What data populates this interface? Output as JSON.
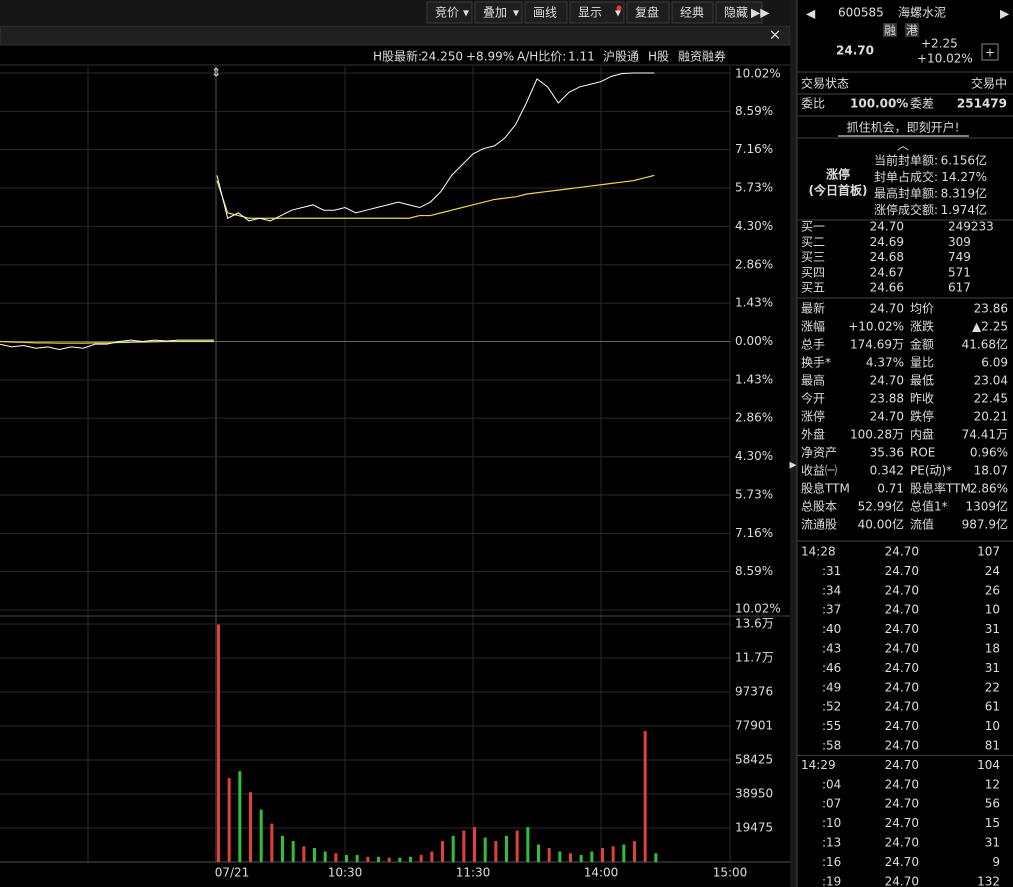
{
  "toolbar": {
    "buttons": [
      "竞价",
      "叠加",
      "画线",
      "显示",
      "复盘",
      "经典",
      "隐藏"
    ]
  },
  "info_bar": {
    "h_label": "H股最新:",
    "h_price": "24.250",
    "h_change": "+8.99%",
    "ah_label": "A/H比价:",
    "ah_value": "1.11",
    "links": [
      "沪股通",
      "H股",
      "融资融券"
    ]
  },
  "chart": {
    "type": "line",
    "price_axis": {
      "ylim": [
        -10.02,
        10.02
      ],
      "yticks": [
        {
          "value": 10.02,
          "label": "10.02%"
        },
        {
          "value": 8.59,
          "label": "8.59%"
        },
        {
          "value": 7.16,
          "label": "7.16%"
        },
        {
          "value": 5.73,
          "label": "5.73%"
        },
        {
          "value": 4.3,
          "label": "4.30%"
        },
        {
          "value": 2.86,
          "label": "2.86%"
        },
        {
          "value": 1.43,
          "label": "1.43%"
        },
        {
          "value": 0,
          "label": "0.00%"
        },
        {
          "value": -1.43,
          "label": "1.43%"
        },
        {
          "value": -2.86,
          "label": "2.86%"
        },
        {
          "value": -4.3,
          "label": "4.30%"
        },
        {
          "value": -5.73,
          "label": "5.73%"
        },
        {
          "value": -7.16,
          "label": "7.16%"
        },
        {
          "value": -8.59,
          "label": "8.59%"
        },
        {
          "value": -10.02,
          "label": "10.02%"
        }
      ]
    },
    "price_color": "#ffffff",
    "avg_color": "#e8d84a",
    "prev_day": {
      "price": [
        -0.1,
        -0.2,
        -0.15,
        -0.25,
        -0.2,
        -0.3,
        -0.2,
        -0.25,
        -0.1,
        -0.1,
        0,
        0.05,
        0,
        0.05,
        0.02,
        0.05,
        0.05,
        0.05,
        0.05
      ],
      "avg": [
        0,
        -0.02,
        -0.03,
        -0.05,
        -0.05,
        -0.06,
        -0.06,
        -0.06,
        -0.05,
        -0.05,
        -0.04,
        -0.03,
        -0.02,
        -0.01,
        0,
        0,
        0,
        0,
        0
      ]
    },
    "today": {
      "price": [
        6.2,
        4.6,
        4.8,
        4.5,
        4.6,
        4.5,
        4.7,
        4.9,
        5.0,
        5.1,
        4.9,
        4.9,
        5.0,
        4.8,
        4.9,
        5.0,
        5.1,
        5.2,
        5.1,
        5.0,
        5.2,
        5.6,
        6.2,
        6.6,
        7.0,
        7.2,
        7.3,
        7.6,
        8.1,
        8.9,
        9.8,
        9.5,
        8.9,
        9.3,
        9.5,
        9.6,
        9.7,
        9.9,
        10.0,
        10.02,
        10.02,
        10.02
      ],
      "avg": [
        6.0,
        4.8,
        4.7,
        4.6,
        4.6,
        4.6,
        4.6,
        4.6,
        4.6,
        4.6,
        4.6,
        4.6,
        4.6,
        4.6,
        4.6,
        4.6,
        4.6,
        4.6,
        4.6,
        4.7,
        4.7,
        4.8,
        4.9,
        5.0,
        5.1,
        5.2,
        5.3,
        5.35,
        5.4,
        5.5,
        5.55,
        5.6,
        5.65,
        5.7,
        5.75,
        5.8,
        5.85,
        5.9,
        5.95,
        6.0,
        6.1,
        6.2
      ]
    },
    "volume": {
      "ylim": [
        0,
        136325
      ],
      "yticks": [
        {
          "value": 136325,
          "label": "13.6万"
        },
        {
          "value": 116850,
          "label": "11.7万"
        },
        97376,
        77901,
        58425,
        38950,
        19475
      ],
      "values": [
        136000,
        48000,
        52000,
        40000,
        30000,
        22000,
        15000,
        12000,
        9000,
        8000,
        6000,
        5000,
        4000,
        4000,
        3000,
        3000,
        2500,
        2500,
        3000,
        4000,
        6000,
        12000,
        15000,
        18000,
        20000,
        14000,
        12000,
        15000,
        18000,
        20000,
        10000,
        8000,
        6000,
        5000,
        4000,
        6000,
        8000,
        9000,
        10000,
        12000,
        75000,
        5000
      ],
      "colors": [
        "#e04040",
        "#e04040",
        "#2fbf3a",
        "#e04040",
        "#2fbf3a",
        "#e04040",
        "#2fbf3a",
        "#2fbf3a",
        "#e04040",
        "#2fbf3a",
        "#2fbf3a",
        "#e04040",
        "#2fbf3a",
        "#2fbf3a",
        "#e04040",
        "#2fbf3a",
        "#e04040",
        "#2fbf3a",
        "#2fbf3a",
        "#e04040",
        "#e04040",
        "#e04040",
        "#2fbf3a",
        "#e04040",
        "#e04040",
        "#2fbf3a",
        "#e04040",
        "#2fbf3a",
        "#e04040",
        "#2fbf3a",
        "#2fbf3a",
        "#e04040",
        "#2fbf3a",
        "#e04040",
        "#2fbf3a",
        "#2fbf3a",
        "#e04040",
        "#e04040",
        "#2fbf3a",
        "#e04040",
        "#e04040",
        "#2fbf3a"
      ]
    },
    "x_labels": [
      "07/21",
      "10:30",
      "11:30",
      "14:00",
      "15:00"
    ]
  },
  "quote": {
    "code": "600585",
    "name": "海螺水泥",
    "badges": [
      "融",
      "港"
    ],
    "price": "24.70",
    "change": "+2.25",
    "change_pct": "+10.02%",
    "status_label": "交易状态",
    "status": "交易中",
    "ratio": [
      "委比",
      "100.00%",
      "委差",
      "251479"
    ],
    "banner": "抓住机会，即刻开户!",
    "limit": {
      "title": "涨停",
      "subtitle": "(今日首板)",
      "rows": [
        [
          "当前封单额:",
          "6.156亿"
        ],
        [
          "封单占成交:",
          "14.27%"
        ],
        [
          "最高封单额:",
          "8.319亿"
        ],
        [
          "涨停成交额:",
          "1.974亿"
        ]
      ]
    },
    "bids": [
      [
        "买一",
        "24.70",
        "249233"
      ],
      [
        "买二",
        "24.69",
        "309"
      ],
      [
        "买三",
        "24.68",
        "749"
      ],
      [
        "买四",
        "24.67",
        "571"
      ],
      [
        "买五",
        "24.66",
        "617"
      ]
    ],
    "stats": [
      {
        "cells": [
          "最新",
          "24.70",
          "均价",
          "23.86"
        ],
        "colors": [
          "#ff4d4d",
          "#ff4d4d"
        ]
      },
      {
        "cells": [
          "涨幅",
          "+10.02%",
          "涨跌",
          "▲2.25"
        ],
        "colors": [
          "#ff4d4d",
          "#ff4d4d"
        ]
      },
      {
        "cells": [
          "总手",
          "174.69万",
          "金额",
          "41.68亿"
        ],
        "colors": [
          "#e6e6e6",
          "#33e0ff"
        ]
      },
      {
        "cells": [
          "换手*",
          "4.37%",
          "量比",
          "6.09"
        ],
        "colors": [
          "#e6e6e6",
          "#ff4d4d"
        ]
      },
      {
        "cells": [
          "最高",
          "24.70",
          "最低",
          "23.04"
        ],
        "colors": [
          "#ff4d4d",
          "#ff4d4d"
        ]
      },
      {
        "cells": [
          "今开",
          "23.88",
          "昨收",
          "22.45"
        ],
        "colors": [
          "#ff4d4d",
          "#e6e6e6"
        ]
      },
      {
        "cells": [
          "涨停",
          "24.70",
          "跌停",
          "20.21"
        ],
        "colors": [
          "#ff4d4d",
          "#3fd33f"
        ]
      },
      {
        "cells": [
          "外盘",
          "100.28万",
          "内盘",
          "74.41万"
        ],
        "colors": [
          "#ff4d4d",
          "#3fd33f"
        ]
      },
      {
        "cells": [
          "净资产",
          "35.36",
          "ROE",
          "0.96%"
        ],
        "colors": [
          "#e6e6e6",
          "#e6e6e6"
        ]
      },
      {
        "cells": [
          "收益㈠",
          "0.342",
          "PE(动)*",
          "18.07"
        ],
        "colors": [
          "#e6e6e6",
          "#e6e6e6"
        ]
      },
      {
        "cells": [
          "股息TTM",
          "0.71",
          "股息率TTM",
          "2.86%"
        ],
        "colors": [
          "#e6e6e6",
          "#e6e6e6"
        ]
      },
      {
        "cells": [
          "总股本",
          "52.99亿",
          "总值1*",
          "1309亿"
        ],
        "colors": [
          "#e6e6e6",
          "#e6e6e6"
        ]
      },
      {
        "cells": [
          "流通股",
          "40.00亿",
          "流值",
          "987.9亿"
        ],
        "colors": [
          "#e6e6e6",
          "#e6e6e6"
        ]
      }
    ],
    "trades": [
      {
        "time": "14:28",
        "price": "24.70",
        "volume": "107"
      },
      {
        "time": ":31",
        "price": "24.70",
        "volume": "24"
      },
      {
        "time": ":34",
        "price": "24.70",
        "volume": "26"
      },
      {
        "time": ":37",
        "price": "24.70",
        "volume": "10"
      },
      {
        "time": ":40",
        "price": "24.70",
        "volume": "31"
      },
      {
        "time": ":43",
        "price": "24.70",
        "volume": "18"
      },
      {
        "time": ":46",
        "price": "24.70",
        "volume": "31"
      },
      {
        "time": ":49",
        "price": "24.70",
        "volume": "22"
      },
      {
        "time": ":52",
        "price": "24.70",
        "volume": "61"
      },
      {
        "time": ":55",
        "price": "24.70",
        "volume": "10"
      },
      {
        "time": ":58",
        "price": "24.70",
        "volume": "81"
      },
      {
        "time": "14:29",
        "price": "24.70",
        "volume": "104"
      },
      {
        "time": ":04",
        "price": "24.70",
        "volume": "12"
      },
      {
        "time": ":07",
        "price": "24.70",
        "volume": "56"
      },
      {
        "time": ":10",
        "price": "24.70",
        "volume": "15"
      },
      {
        "time": ":13",
        "price": "24.70",
        "volume": "31"
      },
      {
        "time": ":16",
        "price": "24.70",
        "volume": "9"
      },
      {
        "time": ":19",
        "price": "24.70",
        "volume": "132"
      }
    ]
  }
}
